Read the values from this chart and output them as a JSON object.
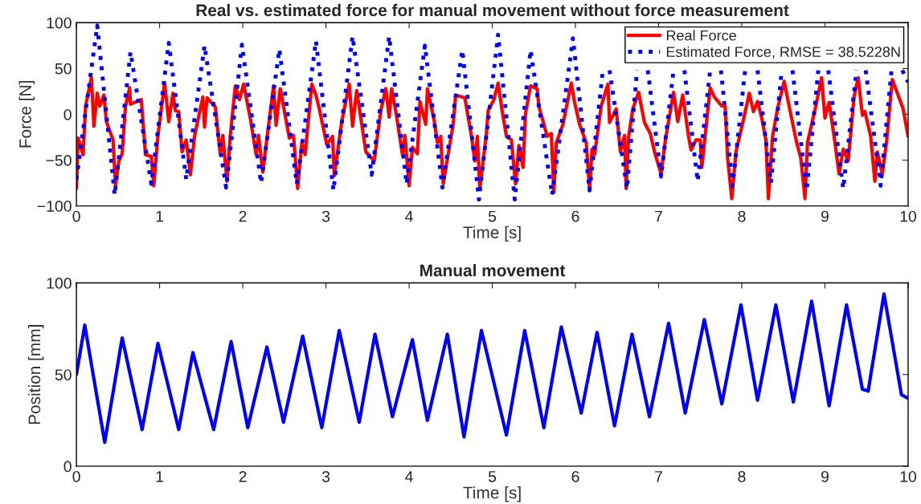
{
  "chart_data": [
    {
      "type": "line",
      "title": "Real vs. estimated force for manual movement without force measurement",
      "xlabel": "Time [s]",
      "ylabel": "Force [N]",
      "xlim": [
        0,
        10
      ],
      "ylim": [
        -100,
        100
      ],
      "xticks": [
        0,
        1,
        2,
        3,
        4,
        5,
        6,
        7,
        8,
        9,
        10
      ],
      "yticks": [
        -100,
        -50,
        0,
        50,
        100
      ],
      "legend": "top right",
      "series": [
        {
          "name": "Real Force",
          "color": "#ff0000",
          "line_style": "solid",
          "x": [
            0,
            0.02,
            0.08,
            0.11,
            0.18,
            0.21,
            0.25,
            0.28,
            0.33,
            0.36,
            0.44,
            0.47,
            0.51,
            0.55,
            0.59,
            0.64,
            0.65,
            0.78,
            0.83,
            0.9,
            0.93,
            0.98,
            1.06,
            1.11,
            1.16,
            1.19,
            1.23,
            1.27,
            1.32,
            1.37,
            1.42,
            1.52,
            1.54,
            1.57,
            1.67,
            1.73,
            1.76,
            1.81,
            1.85,
            1.91,
            1.96,
            2.01,
            2.09,
            2.16,
            2.19,
            2.24,
            2.37,
            2.4,
            2.45,
            2.56,
            2.61,
            2.66,
            2.71,
            2.75,
            2.83,
            2.88,
            2.92,
            3.01,
            3.08,
            3.1,
            3.19,
            3.28,
            3.32,
            3.37,
            3.48,
            3.58,
            3.59,
            3.66,
            3.72,
            3.76,
            3.79,
            3.84,
            3.92,
            3.95,
            4.0,
            4.04,
            4.1,
            4.13,
            4.2,
            4.22,
            4.3,
            4.34,
            4.38,
            4.41,
            4.53,
            4.56,
            4.67,
            4.75,
            4.79,
            4.82,
            4.85,
            4.93,
            4.95,
            5.02,
            5.07,
            5.12,
            5.17,
            5.23,
            5.28,
            5.32,
            5.37,
            5.4,
            5.46,
            5.54,
            5.56,
            5.66,
            5.71,
            5.74,
            5.77,
            5.85,
            5.95,
            5.99,
            6.05,
            6.13,
            6.17,
            6.2,
            6.23,
            6.31,
            6.39,
            6.41,
            6.49,
            6.54,
            6.59,
            6.61,
            6.64,
            6.69,
            6.76,
            6.83,
            6.9,
            6.96,
            7.03,
            7.08,
            7.18,
            7.23,
            7.29,
            7.36,
            7.39,
            7.45,
            7.5,
            7.52,
            7.62,
            7.67,
            7.76,
            7.8,
            7.83,
            7.88,
            7.93,
            8.03,
            8.09,
            8.14,
            8.19,
            8.24,
            8.29,
            8.32,
            8.37,
            8.43,
            8.51,
            8.56,
            8.66,
            8.71,
            8.76,
            8.79,
            8.89,
            8.96,
            9.0,
            9.05,
            9.11,
            9.17,
            9.22,
            9.28,
            9.35,
            9.4,
            9.45,
            9.48,
            9.55,
            9.6,
            9.63,
            9.69,
            9.74,
            9.81,
            9.94,
            10
          ],
          "values": [
            -81,
            -26,
            -44,
            9,
            40,
            -13,
            23,
            9,
            21,
            -8,
            -28,
            -78,
            -51,
            -43,
            9,
            29,
            11,
            16,
            -44,
            -46,
            -78,
            -23,
            34,
            -8,
            23,
            4,
            3,
            -41,
            -28,
            -66,
            -24,
            19,
            -14,
            18,
            8,
            -44,
            -23,
            -73,
            -23,
            31,
            16,
            33,
            -4,
            -44,
            -23,
            -63,
            31,
            -12,
            28,
            -26,
            -23,
            -81,
            -31,
            -44,
            33,
            21,
            6,
            -33,
            -24,
            -67,
            -8,
            33,
            -13,
            26,
            -41,
            -51,
            -44,
            4,
            28,
            -3,
            28,
            3,
            -44,
            -23,
            -78,
            -36,
            -43,
            14,
            -11,
            28,
            -6,
            -31,
            -24,
            -76,
            -11,
            21,
            18,
            -24,
            -51,
            -24,
            -81,
            -21,
            4,
            16,
            34,
            3,
            -24,
            -28,
            -76,
            -34,
            -58,
            1,
            31,
            28,
            9,
            -24,
            -21,
            -85,
            -31,
            -11,
            34,
            13,
            -11,
            -31,
            -83,
            -38,
            -44,
            9,
            33,
            -9,
            6,
            -41,
            -23,
            -81,
            -24,
            6,
            24,
            -9,
            -21,
            -44,
            -65,
            -29,
            24,
            -8,
            21,
            -24,
            -39,
            -28,
            -28,
            -58,
            29,
            19,
            9,
            9,
            -48,
            -92,
            -41,
            -2,
            23,
            3,
            14,
            -4,
            -28,
            -92,
            -24,
            6,
            36,
            13,
            -31,
            -48,
            -92,
            -31,
            9,
            40,
            -4,
            13,
            -24,
            -65,
            -38,
            -51,
            19,
            40,
            -1,
            3,
            -24,
            -73,
            -41,
            -65,
            -31,
            38,
            6,
            -24
          ]
        },
        {
          "name": "Estimated Force, RMSE = 38.5228N",
          "color": "#0000ff",
          "line_style": "dotted",
          "x": [
            0,
            0.25,
            0.46,
            0.65,
            0.9,
            1.11,
            1.32,
            1.54,
            1.8,
            1.99,
            2.22,
            2.44,
            2.65,
            2.88,
            3.09,
            3.32,
            3.55,
            3.76,
            3.97,
            4.19,
            4.4,
            4.64,
            4.84,
            5.07,
            5.27,
            5.46,
            5.72,
            5.97,
            6.17,
            6.33,
            6.37,
            6.41,
            6.62,
            6.74,
            6.8,
            6.87,
            7.03,
            7.18,
            7.25,
            7.31,
            7.47,
            7.62,
            7.68,
            7.75,
            7.89,
            8.04,
            8.1,
            8.19,
            8.35,
            8.48,
            8.55,
            8.61,
            8.78,
            8.92,
            8.98,
            9.04,
            9.22,
            9.38,
            9.43,
            9.49,
            9.67,
            9.8,
            9.86,
            9.93,
            10
          ],
          "values": [
            -71,
            97,
            -88,
            68,
            -76,
            78,
            -71,
            75,
            -80,
            76,
            -75,
            71,
            -76,
            80,
            -83,
            85,
            -66,
            85,
            -76,
            75,
            -80,
            70,
            -93,
            87,
            -93,
            70,
            -88,
            83,
            -83,
            48,
            null,
            48,
            -81,
            48,
            null,
            48,
            -68,
            48,
            null,
            48,
            -73,
            48,
            null,
            48,
            -78,
            48,
            null,
            48,
            -75,
            48,
            null,
            48,
            -83,
            48,
            null,
            48,
            -81,
            48,
            null,
            48,
            -78,
            48,
            null,
            48,
            35
          ]
        }
      ]
    },
    {
      "type": "line",
      "title": "Manual movement",
      "xlabel": "Time [s]",
      "ylabel": "Position [mm]",
      "xlim": [
        0,
        10
      ],
      "ylim": [
        0,
        100
      ],
      "xticks": [
        0,
        1,
        2,
        3,
        4,
        5,
        6,
        7,
        8,
        9,
        10
      ],
      "yticks": [
        0,
        50,
        100
      ],
      "series": [
        {
          "color": "#0000ff",
          "line_style": "solid",
          "x": [
            0,
            0.1,
            0.34,
            0.55,
            0.79,
            0.98,
            1.23,
            1.4,
            1.65,
            1.86,
            2.06,
            2.29,
            2.49,
            2.72,
            2.95,
            3.16,
            3.4,
            3.59,
            3.8,
            4.04,
            4.22,
            4.46,
            4.66,
            4.87,
            5.17,
            5.39,
            5.62,
            5.83,
            6.07,
            6.26,
            6.47,
            6.68,
            6.89,
            7.12,
            7.32,
            7.55,
            7.76,
            7.99,
            8.19,
            8.41,
            8.62,
            8.84,
            9.05,
            9.26,
            9.45,
            9.52,
            9.71,
            9.92,
            10
          ],
          "values": [
            50,
            77,
            13,
            70,
            20,
            67,
            20,
            62,
            20,
            68,
            21,
            65,
            24,
            71,
            21,
            74,
            24,
            72,
            27,
            69,
            25,
            72,
            16,
            74,
            17,
            74,
            21,
            76,
            29,
            73,
            22,
            72,
            27,
            78,
            29,
            80,
            34,
            88,
            36,
            88,
            35,
            90,
            33,
            88,
            42,
            41,
            94,
            39,
            37
          ]
        }
      ]
    }
  ]
}
